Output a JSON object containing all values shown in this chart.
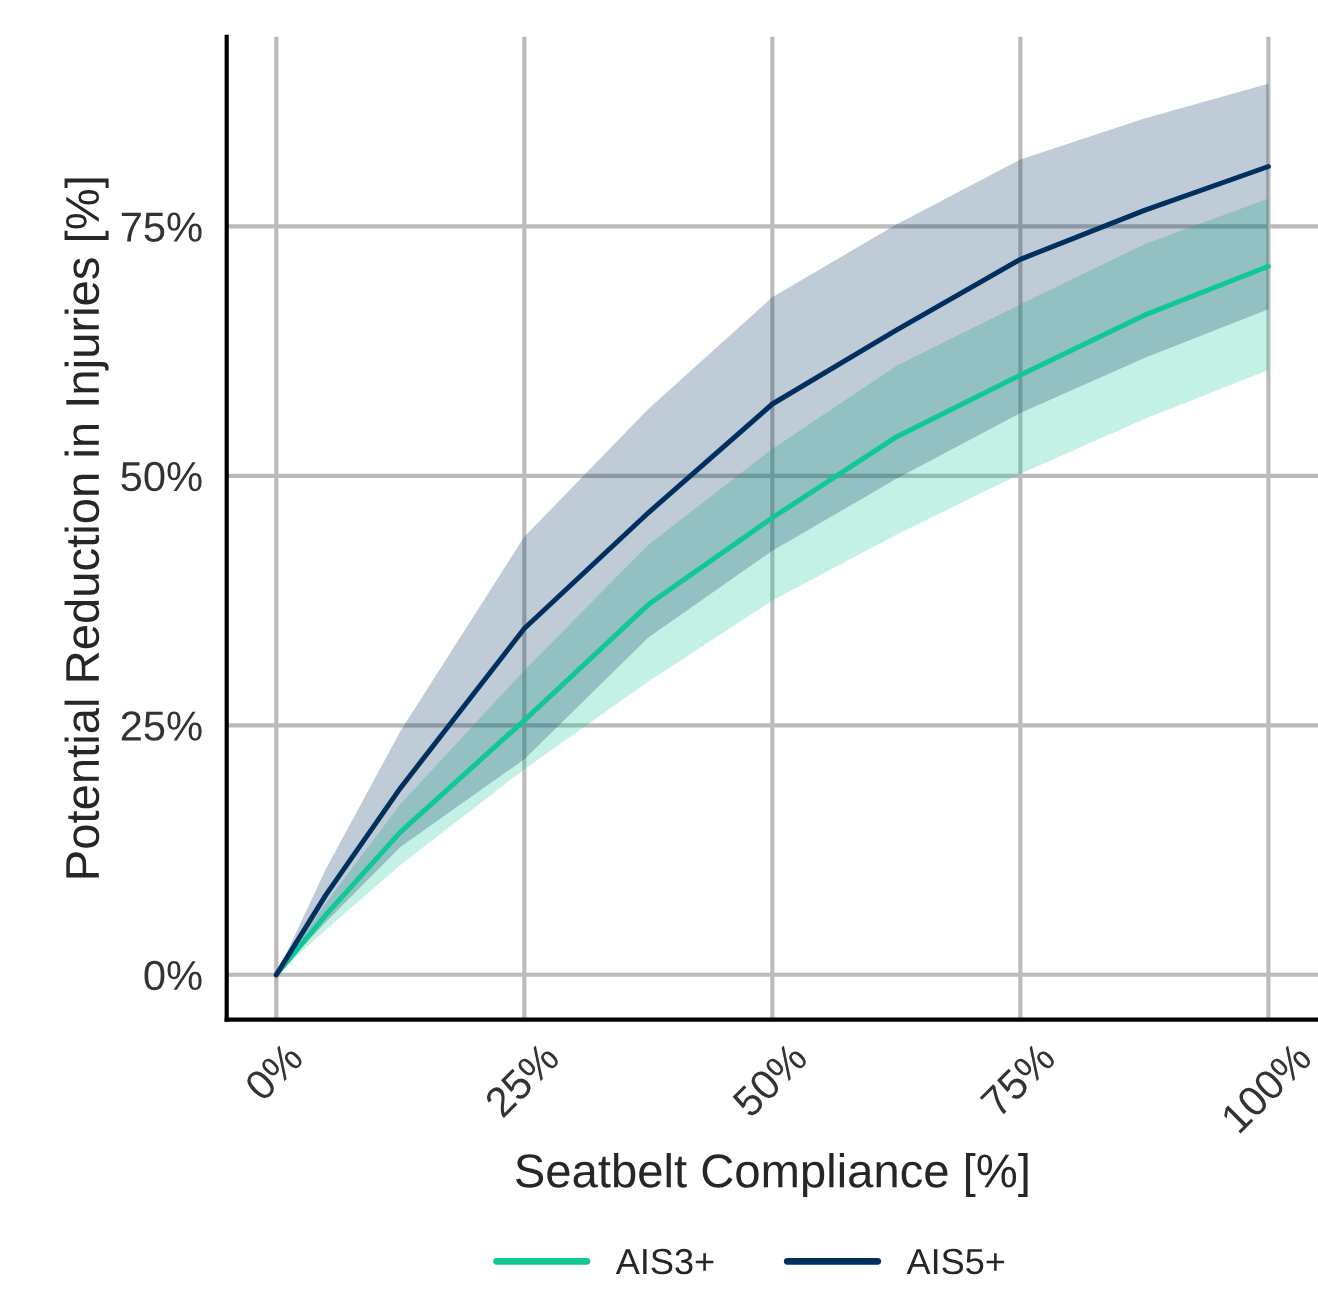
{
  "chart_data": {
    "type": "line",
    "xlabel": "Seatbelt Compliance [%]",
    "ylabel": "Potential Reduction in Injuries [%]",
    "x": [
      0,
      5,
      12.5,
      25,
      37.5,
      50,
      62.5,
      75,
      87.5,
      100
    ],
    "series": [
      {
        "name": "AIS3+",
        "color": "#10c896",
        "values": [
          0,
          6.0,
          14.3,
          25.5,
          37.1,
          45.8,
          53.9,
          60.1,
          66.1,
          71.0
        ],
        "lower": [
          0,
          4.5,
          11.0,
          20.6,
          29.4,
          37.5,
          44.1,
          50.2,
          55.7,
          60.6
        ],
        "upper": [
          0,
          7.2,
          17.1,
          30.5,
          43.1,
          52.7,
          61.0,
          67.2,
          73.2,
          77.8
        ]
      },
      {
        "name": "AIS5+",
        "color": "#00305f",
        "values": [
          0,
          8.0,
          18.7,
          34.7,
          46.3,
          57.2,
          64.6,
          71.7,
          76.6,
          81.0
        ],
        "lower": [
          0,
          5.3,
          12.8,
          21.6,
          33.8,
          42.5,
          49.7,
          56.3,
          61.8,
          66.7
        ],
        "upper": [
          0,
          10.6,
          24.4,
          43.9,
          56.7,
          67.9,
          75.2,
          81.7,
          85.8,
          89.3
        ]
      }
    ],
    "xlim": [
      -5,
      105
    ],
    "ylim": [
      -4.5,
      94
    ],
    "xticks": [
      {
        "value": 0,
        "label": "0%"
      },
      {
        "value": 25,
        "label": "25%"
      },
      {
        "value": 50,
        "label": "50%"
      },
      {
        "value": 75,
        "label": "75%"
      },
      {
        "value": 100,
        "label": "100%"
      }
    ],
    "yticks": [
      {
        "value": 0,
        "label": "0%"
      },
      {
        "value": 25,
        "label": "25%"
      },
      {
        "value": 50,
        "label": "50%"
      },
      {
        "value": 75,
        "label": "75%"
      }
    ],
    "grid": true,
    "legend": "bottom"
  }
}
